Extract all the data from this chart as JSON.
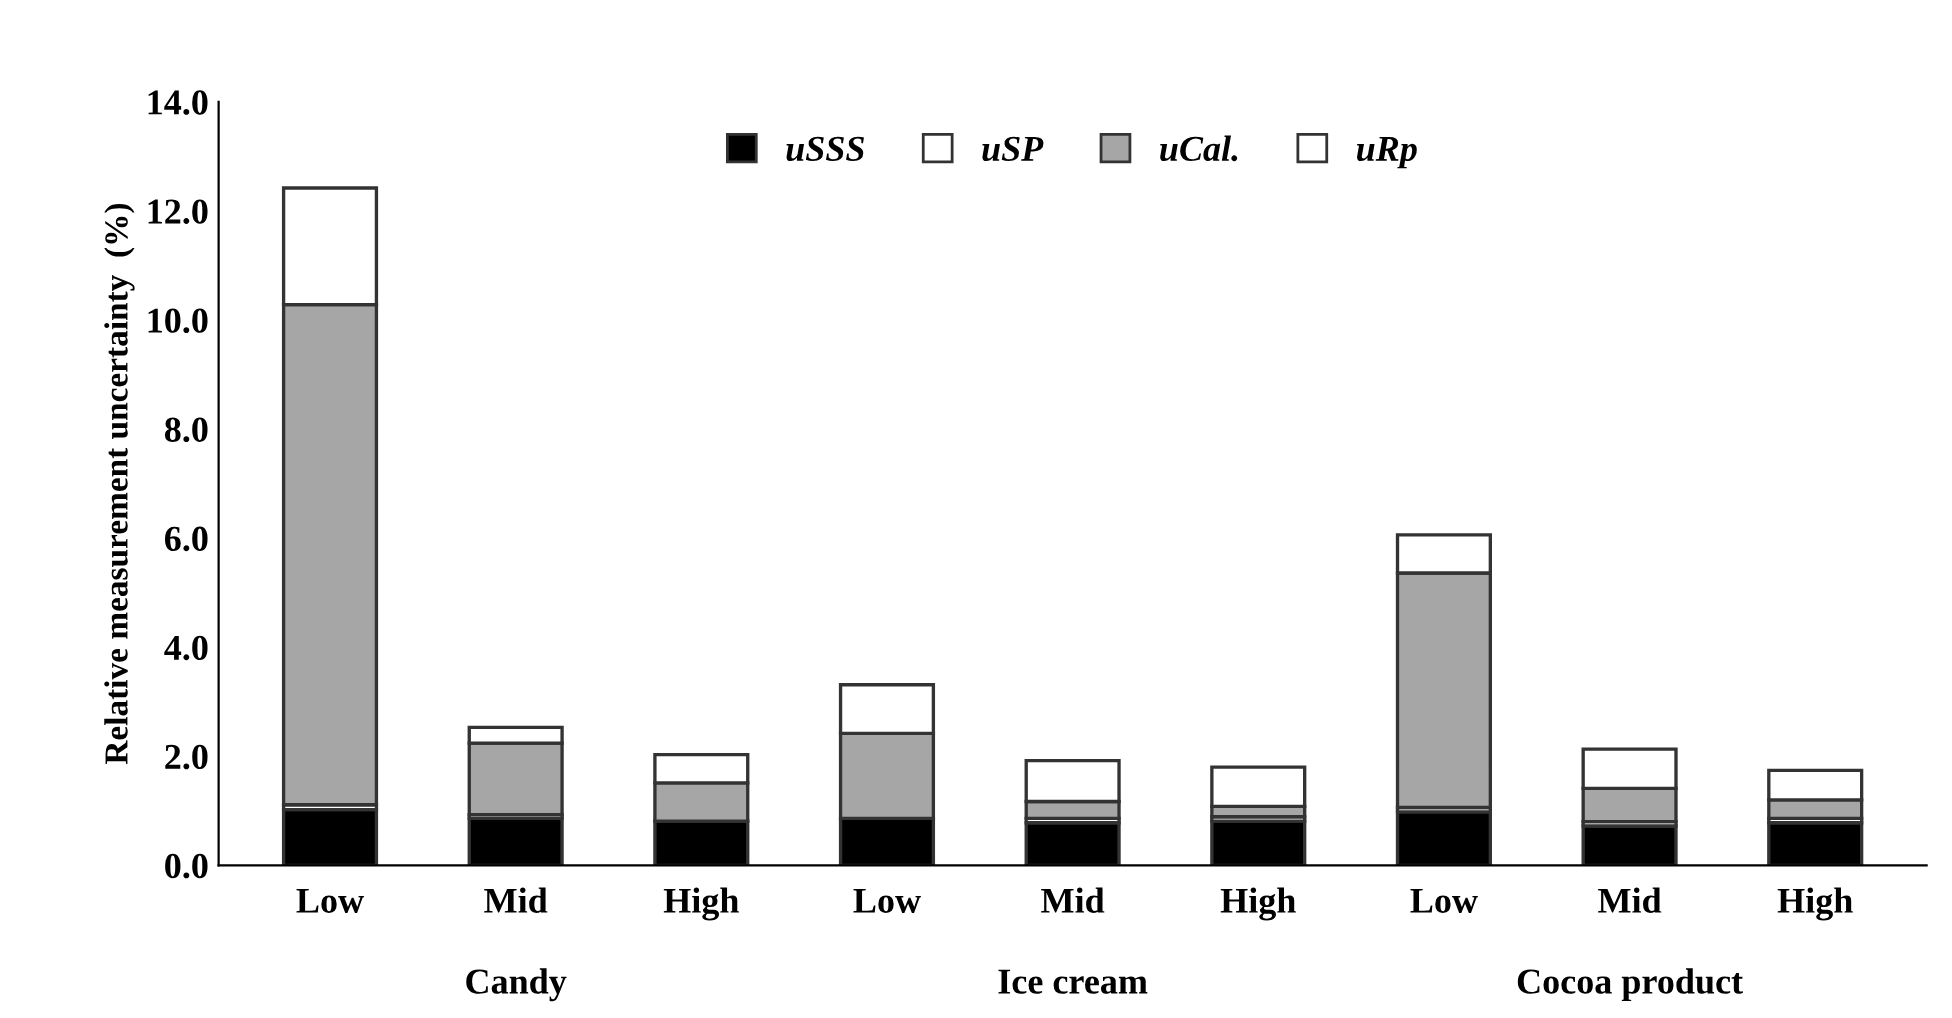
{
  "chart_data": {
    "type": "bar",
    "stacked": true,
    "ylabel": "Relative measurement uncertainty  (%)",
    "categories": [
      "Low",
      "Mid",
      "High",
      "Low",
      "Mid",
      "High",
      "Low",
      "Mid",
      "High"
    ],
    "annotations": [
      "Candy",
      "Ice cream",
      "Cocoa product"
    ],
    "series": [
      {
        "name": "uSSS",
        "color": "#000000",
        "values": [
          1.02,
          0.86,
          0.81,
          0.86,
          0.78,
          0.81,
          0.98,
          0.72,
          0.78
        ]
      },
      {
        "name": "uSP",
        "color": "#ffffff",
        "values": [
          0.09,
          0.07,
          null,
          null,
          0.08,
          0.08,
          0.08,
          0.08,
          0.08
        ]
      },
      {
        "name": "uCal.",
        "color": "#a6a6a6",
        "values": [
          9.17,
          1.31,
          0.7,
          1.56,
          0.31,
          0.19,
          4.3,
          0.61,
          0.34
        ]
      },
      {
        "name": "uRp",
        "color": "#ffffff",
        "values": [
          2.14,
          0.29,
          0.52,
          0.89,
          0.75,
          0.72,
          0.7,
          0.72,
          0.54
        ]
      }
    ],
    "ylim": [
      0,
      14
    ],
    "yticks": [
      {
        "value": 0,
        "label": "0.0"
      },
      {
        "value": 2,
        "label": "2.0"
      },
      {
        "value": 4,
        "label": "4.0"
      },
      {
        "value": 6,
        "label": "6.0"
      },
      {
        "value": 8,
        "label": "8.0"
      },
      {
        "value": 10,
        "label": "10.0"
      },
      {
        "value": 12,
        "label": "12.0"
      },
      {
        "value": 14,
        "label": "14.0"
      }
    ],
    "grid": false,
    "legend": "top"
  }
}
